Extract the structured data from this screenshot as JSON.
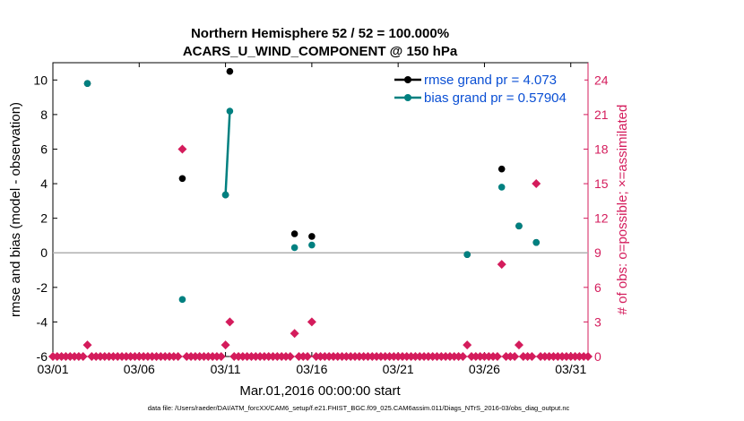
{
  "chart_data": {
    "type": "scatter",
    "title": [
      "Northern Hemisphere 52 / 52 = 100.000%",
      "ACARS_U_WIND_COMPONENT @ 150 hPa"
    ],
    "xlabel": "Mar.01,2016 00:00:00 start",
    "ylabel_left": "rmse and bias (model - observation)",
    "ylabel_right": "# of obs: o=possible; ×=assimilated",
    "footnote": "data file: /Users/raeder/DAI/ATM_forcXX/CAM6_setup/f.e21.FHIST_BGC.f09_025.CAM6assim.011/Diags_NTrS_2016-03/obs_diag_output.nc",
    "xlim": [
      1,
      32
    ],
    "x_ticks": [
      1,
      6,
      11,
      16,
      21,
      26,
      31
    ],
    "x_tick_labels": [
      "03/01",
      "03/06",
      "03/11",
      "03/16",
      "03/21",
      "03/26",
      "03/31"
    ],
    "ylim_left": [
      -6,
      11
    ],
    "y_ticks_left": [
      -6,
      -4,
      -2,
      0,
      2,
      4,
      6,
      8,
      10
    ],
    "ylim_right": [
      0,
      25.5
    ],
    "y_ticks_right": [
      0,
      3,
      6,
      9,
      12,
      15,
      18,
      21,
      24
    ],
    "zero_line": 0,
    "legend_position": "top-right",
    "colors": {
      "rmse": "#000000",
      "bias": "#008080",
      "obs": "#d41c5c",
      "zero": "#b0b0b0",
      "axis_right": "#d41c5c"
    },
    "series": [
      {
        "name": "rmse grand pr = 4.073",
        "points": [
          [
            3.0,
            9.8
          ],
          [
            8.5,
            4.3
          ],
          [
            11.0,
            3.35
          ],
          [
            11.25,
            10.5
          ],
          [
            15.0,
            1.1
          ],
          [
            16.0,
            0.95
          ],
          [
            25.0,
            -0.1
          ],
          [
            27.0,
            4.85
          ],
          [
            28.0,
            1.55
          ],
          [
            29.0,
            0.6
          ]
        ]
      },
      {
        "name": "bias grand pr = 0.57904",
        "points": [
          [
            3.0,
            9.8
          ],
          [
            8.5,
            -2.7
          ],
          [
            11.0,
            3.35
          ],
          [
            11.25,
            8.2
          ],
          [
            15.0,
            0.3
          ],
          [
            16.0,
            0.45
          ],
          [
            25.0,
            -0.1
          ],
          [
            27.0,
            3.8
          ],
          [
            28.0,
            1.55
          ],
          [
            29.0,
            0.6
          ]
        ],
        "connected": [
          [
            11.0,
            3.35
          ],
          [
            11.25,
            8.2
          ]
        ]
      },
      {
        "name": "obs",
        "points_nonzero": [
          [
            3.0,
            1
          ],
          [
            8.5,
            18
          ],
          [
            11.0,
            1
          ],
          [
            11.25,
            3
          ],
          [
            15.0,
            2
          ],
          [
            16.0,
            3
          ],
          [
            25.0,
            1
          ],
          [
            27.0,
            8
          ],
          [
            28.0,
            1
          ],
          [
            29.0,
            15
          ]
        ],
        "zero_start": 1.0,
        "zero_end": 32.0,
        "zero_step": 0.25
      }
    ]
  }
}
